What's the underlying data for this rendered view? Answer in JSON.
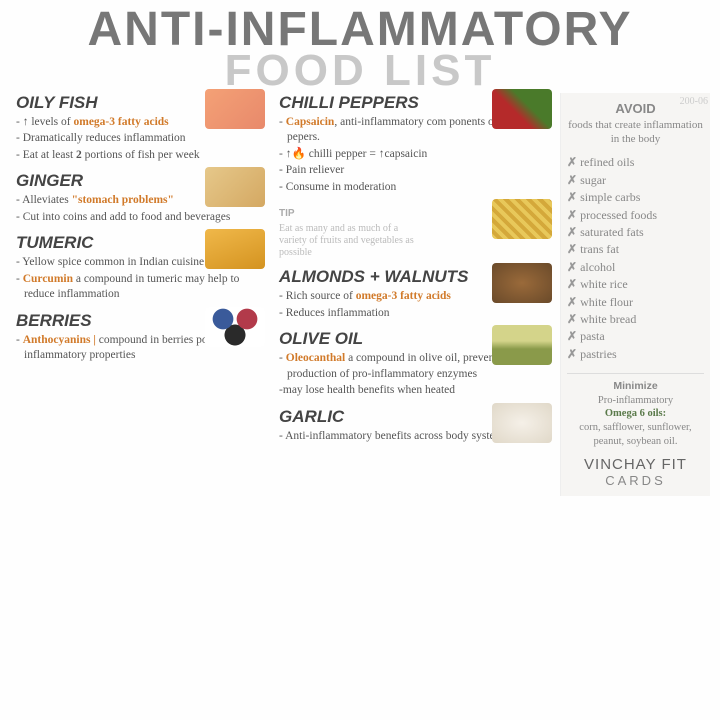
{
  "header": {
    "line1": "ANTI-INFLAMMATORY",
    "line2": "FOOD LIST",
    "code": "200-06"
  },
  "col1": [
    {
      "name": "OILY FISH",
      "img": "linear-gradient(135deg,#f4a176,#e8896b)",
      "bullets": [
        "- ↑ levels of <span class='hl'>omega-3 fatty acids</span>",
        "- Dramatically reduces inflammation",
        "- Eat at least <span class='bold'>2</span> portions of fish per week"
      ]
    },
    {
      "name": "GINGER",
      "img": "linear-gradient(135deg,#e6c88a,#d4a862)",
      "bullets": [
        "- Alleviates <span class='hl'>\"stomach problems\"</span>",
        "- Cut into coins and add to food and beverages"
      ]
    },
    {
      "name": "TUMERIC",
      "img": "linear-gradient(160deg,#f0b84a,#d49320)",
      "bullets": [
        "- Yellow spice common in Indian cuisine (i.e, curry)",
        "- <span class='hl'>Curcumin</span> a compound in tumeric may help to reduce inflammation"
      ]
    },
    {
      "name": "BERRIES",
      "img": "radial-gradient(circle at 30% 30%,#3a5a9a 20%,transparent 21%),radial-gradient(circle at 70% 30%,#b23a4a 20%,transparent 21%),radial-gradient(circle at 50% 70%,#2a2a2a 25%,transparent 26%),#fff",
      "bullets": [
        "- <span class='hl'>Anthocyanins |</span> compound in berries posess anti-inflammatory properties"
      ]
    }
  ],
  "col2": [
    {
      "name": "CHILLI PEPPERS",
      "img": "linear-gradient(45deg,#b52a2a 40%,#4a7a2a 60%)",
      "bullets": [
        "- <span class='hl'>Capsaicin</span>, anti-inflammatory com ponents of chilli pepers.",
        "- ↑<span class='fire'>🔥</span> chilli pepper = ↑capsaicin",
        "- Pain reliever",
        "- Consume in moderation"
      ]
    },
    {
      "tip": true,
      "label": "TIP",
      "text": "Eat as many and as much of a variety of fruits and vegetables as possible",
      "img": "repeating-linear-gradient(45deg,#e8c85a,#e8c85a 4px,#d4a83a 4px,#d4a83a 8px)"
    },
    {
      "name": "ALMONDS + WALNUTS",
      "img": "radial-gradient(ellipse,#9a6a3a,#6a4a2a)",
      "bullets": [
        "- Rich source of <span class='hl'>omega-3 fatty acids</span>",
        "- Reduces inflammation"
      ]
    },
    {
      "name": "OLIVE OIL",
      "img": "linear-gradient(180deg,#d4d48a 40%,#8a9a4a 60%)",
      "bullets": [
        "- <span class='hl'>Oleocanthal</span> a compound in olive oil, prevents the production of pro-inflammatory enzymes",
        "-may lose health benefits when heated"
      ]
    },
    {
      "name": "GARLIC",
      "img": "radial-gradient(ellipse,#f5f0e8,#e0d8c8)",
      "bullets": [
        "- Anti-inflammatory benefits across body systems"
      ]
    }
  ],
  "sidebar": {
    "avoid_h": "AVOID",
    "avoid_sub": "foods that create inflammation in the body",
    "items": [
      "refined oils",
      "sugar",
      "simple carbs",
      "processed foods",
      "saturated fats",
      "trans fat",
      "alcohol",
      "white rice",
      "white flour",
      "white bread",
      "pasta",
      "pastries"
    ],
    "min_h": "Minimize",
    "min_sub": "Pro-inflammatory",
    "min_om": "Omega 6 oils:",
    "min_list": "corn, safflower, sunflower, peanut, soybean oil.",
    "brand1": "VINCHAY FIT",
    "brand2": "CARDS"
  }
}
